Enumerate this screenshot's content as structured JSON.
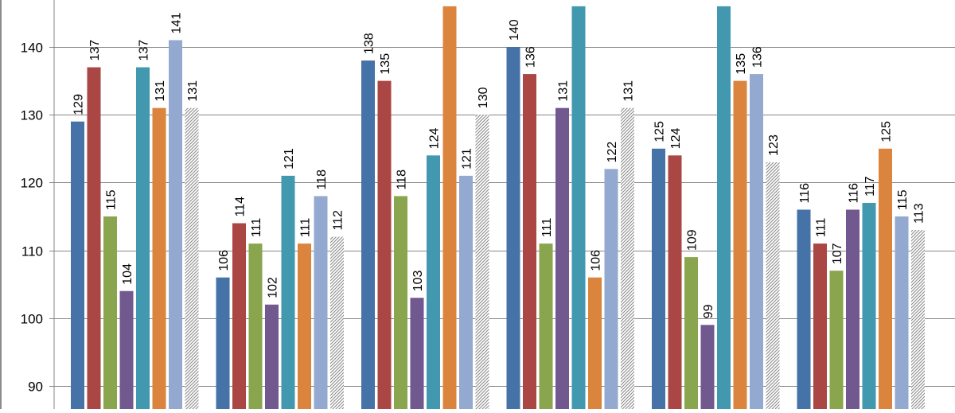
{
  "chart_data": {
    "type": "bar",
    "title": "",
    "xlabel": "",
    "ylabel": "",
    "ylim": [
      86,
      146
    ],
    "y_ticks": [
      90,
      100,
      110,
      120,
      130,
      140
    ],
    "grid": true,
    "legend": "none",
    "categories": [
      "",
      "",
      "",
      "",
      "",
      ""
    ],
    "series": [
      {
        "color": "#4572A7",
        "pattern": false,
        "values": [
          129,
          106,
          138,
          140,
          125,
          116
        ],
        "labels": [
          "129",
          "106",
          "138",
          "140",
          "125",
          "116"
        ]
      },
      {
        "color": "#AA4643",
        "pattern": false,
        "values": [
          137,
          114,
          135,
          136,
          124,
          111
        ],
        "labels": [
          "137",
          "114",
          "135",
          "136",
          "124",
          "111"
        ]
      },
      {
        "color": "#89A54E",
        "pattern": false,
        "values": [
          115,
          111,
          118,
          111,
          109,
          107
        ],
        "labels": [
          "115",
          "111",
          "118",
          "111",
          "109",
          "107"
        ]
      },
      {
        "color": "#71588F",
        "pattern": false,
        "values": [
          104,
          102,
          103,
          131,
          99,
          116
        ],
        "labels": [
          "104",
          "102",
          "103",
          "131",
          "99",
          "116"
        ]
      },
      {
        "color": "#4198AF",
        "pattern": false,
        "values": [
          137,
          121,
          124,
          150,
          150,
          117
        ],
        "labels": [
          "137",
          "121",
          "124",
          "",
          "",
          "117"
        ]
      },
      {
        "color": "#DB843D",
        "pattern": false,
        "values": [
          131,
          111,
          150,
          106,
          135,
          125
        ],
        "labels": [
          "131",
          "111",
          "",
          "106",
          "135",
          "125"
        ]
      },
      {
        "color": "#93A9CF",
        "pattern": false,
        "values": [
          141,
          118,
          121,
          122,
          136,
          115
        ],
        "labels": [
          "141",
          "118",
          "121",
          "122",
          "136",
          "115"
        ]
      },
      {
        "color": "#BFBFBF",
        "pattern": true,
        "values": [
          131,
          112,
          130,
          131,
          123,
          113
        ],
        "labels": [
          "131",
          "112",
          "130",
          "131",
          "123",
          "113"
        ]
      }
    ]
  }
}
